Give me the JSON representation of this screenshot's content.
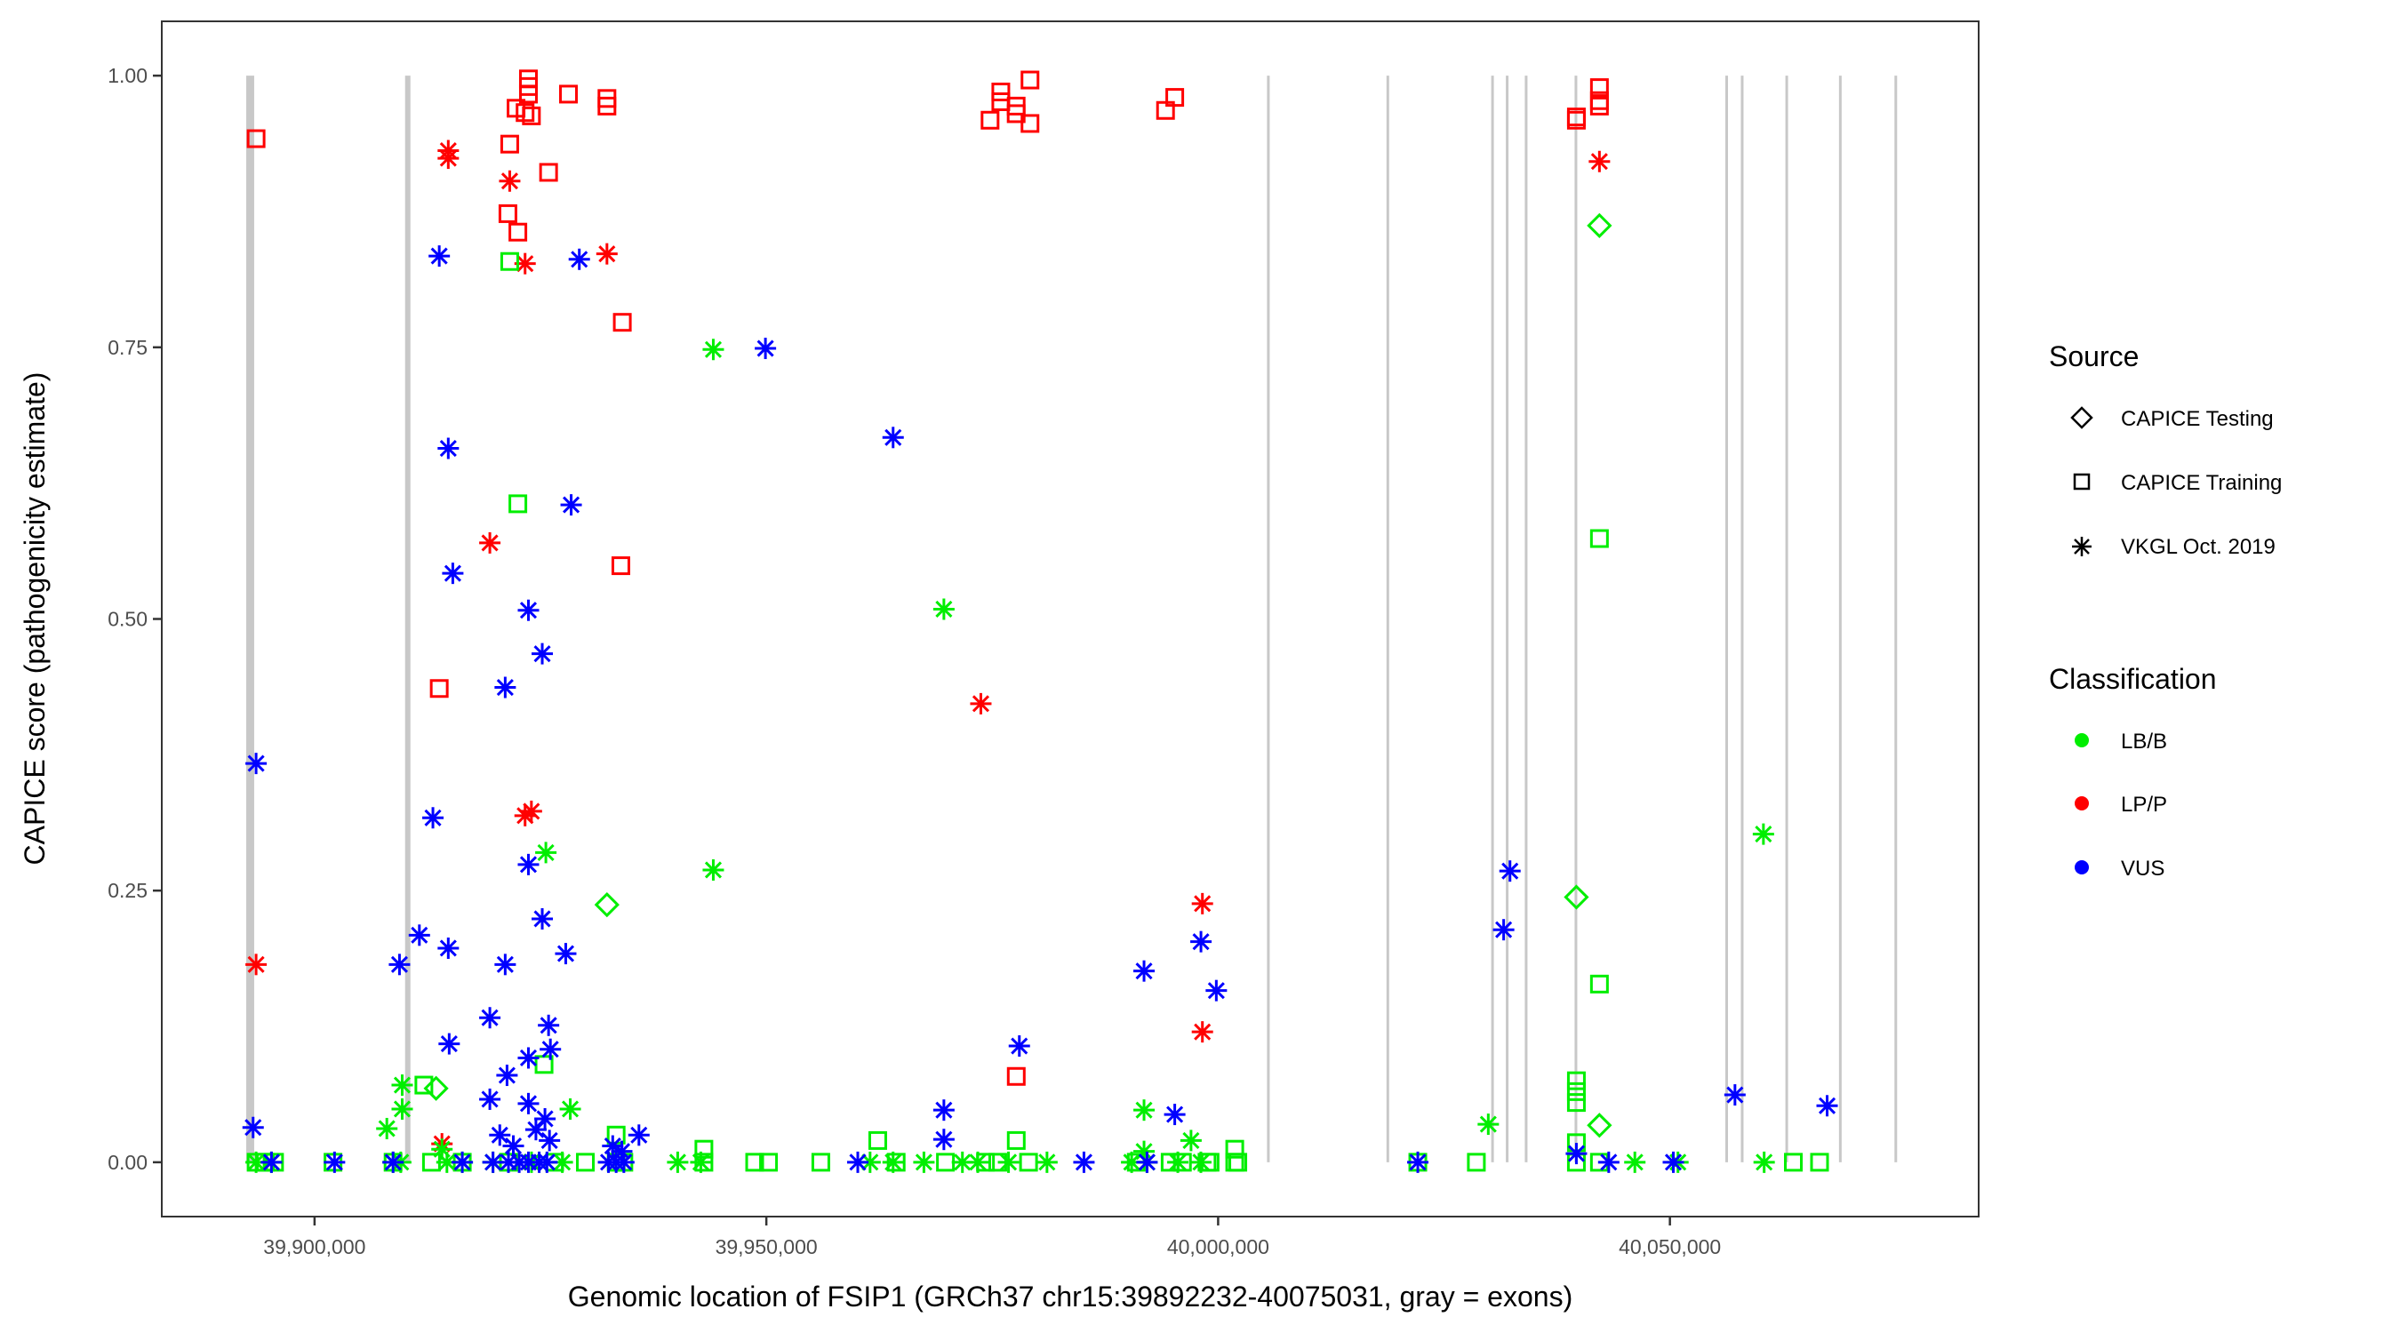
{
  "chart_data": {
    "type": "scatter",
    "xlabel": "Genomic location of FSIP1 (GRCh37 chr15:39892232-40075031, gray = exons)",
    "ylabel": "CAPICE score (pathogenicity estimate)",
    "xlim": [
      39883092,
      40084171
    ],
    "ylim": [
      -0.05,
      1.05
    ],
    "grid": false,
    "x_ticks": [
      {
        "value": 39900000,
        "label": "39,900,000"
      },
      {
        "value": 39950000,
        "label": "39,950,000"
      },
      {
        "value": 40000000,
        "label": "40,000,000"
      },
      {
        "value": 40050000,
        "label": "40,050,000"
      }
    ],
    "y_ticks": [
      {
        "value": 0,
        "label": "0.00"
      },
      {
        "value": 0.25,
        "label": "0.25"
      },
      {
        "value": 0.5,
        "label": "0.50"
      },
      {
        "value": 0.75,
        "label": "0.75"
      },
      {
        "value": 1,
        "label": "1.00"
      }
    ],
    "exons": [
      [
        39892440,
        39893320
      ],
      [
        39910020,
        39910610
      ],
      [
        40005560,
        40005560
      ],
      [
        40018780,
        40018780
      ],
      [
        40030370,
        40030370
      ],
      [
        40031990,
        40031990
      ],
      [
        40034090,
        40034090
      ],
      [
        40039600,
        40039600
      ],
      [
        40056280,
        40056280
      ],
      [
        40058000,
        40058000
      ],
      [
        40062930,
        40062930
      ],
      [
        40068860,
        40068860
      ],
      [
        40075000,
        40075000
      ]
    ],
    "exon_color": "#c8c8c8",
    "legend": {
      "placement": "right",
      "source_title": "Source",
      "sources": [
        {
          "name": "CAPICE Testing",
          "shape": "diamond"
        },
        {
          "name": "CAPICE Training",
          "shape": "square"
        },
        {
          "name": "VKGL Oct. 2019",
          "shape": "asterisk"
        }
      ],
      "class_title": "Classification",
      "classes": [
        {
          "name": "LB/B",
          "color": "#00ee00"
        },
        {
          "name": "LP/P",
          "color": "#ff0000"
        },
        {
          "name": "VUS",
          "color": "#0000ff"
        }
      ]
    },
    "series": [
      {
        "source": "CAPICE Training",
        "classification": "LP/P",
        "points": [
          [
            39893530,
            0.942
          ],
          [
            39923670,
            0.997
          ],
          [
            39923670,
            0.99
          ],
          [
            39923670,
            0.983
          ],
          [
            39922300,
            0.97
          ],
          [
            39923300,
            0.966
          ],
          [
            39924000,
            0.963
          ],
          [
            39928100,
            0.983
          ],
          [
            39932360,
            0.979
          ],
          [
            39932360,
            0.972
          ],
          [
            39921600,
            0.937
          ],
          [
            39925900,
            0.911
          ],
          [
            39921400,
            0.873
          ],
          [
            39922500,
            0.856
          ],
          [
            39934060,
            0.773
          ],
          [
            39933900,
            0.549
          ],
          [
            39913800,
            0.436
          ],
          [
            39977660,
            0.079
          ],
          [
            39974760,
            0.959
          ],
          [
            39975950,
            0.985
          ],
          [
            39975950,
            0.976
          ],
          [
            39977650,
            0.972
          ],
          [
            39977650,
            0.965
          ],
          [
            39979180,
            0.996
          ],
          [
            39979180,
            0.956
          ],
          [
            39994180,
            0.968
          ],
          [
            39995200,
            0.98
          ],
          [
            40039650,
            0.959
          ],
          [
            40039650,
            0.962
          ],
          [
            40042200,
            0.989
          ],
          [
            40042200,
            0.977
          ],
          [
            40042200,
            0.972
          ]
        ]
      },
      {
        "source": "VKGL Oct. 2019",
        "classification": "LP/P",
        "points": [
          [
            39914800,
            0.931
          ],
          [
            39914800,
            0.924
          ],
          [
            39921600,
            0.903
          ],
          [
            39923300,
            0.827
          ],
          [
            39932360,
            0.836
          ],
          [
            39919400,
            0.57
          ],
          [
            39973740,
            0.422
          ],
          [
            39923300,
            0.319
          ],
          [
            39924000,
            0.323
          ],
          [
            39893530,
            0.182
          ],
          [
            39998260,
            0.238
          ],
          [
            39998260,
            0.12
          ],
          [
            40042200,
            0.921
          ],
          [
            39914100,
            0.017
          ]
        ]
      },
      {
        "source": "CAPICE Testing",
        "classification": "LB/B",
        "points": [
          [
            40042200,
            0.862
          ],
          [
            39932360,
            0.237
          ],
          [
            40039650,
            0.244
          ],
          [
            39913450,
            0.068
          ],
          [
            40042200,
            0.034
          ]
        ]
      },
      {
        "source": "CAPICE Training",
        "classification": "LB/B",
        "points": [
          [
            39921600,
            0.829
          ],
          [
            39922500,
            0.606
          ],
          [
            40042200,
            0.574
          ],
          [
            40042200,
            0.164
          ],
          [
            40039650,
            0.075
          ],
          [
            40039650,
            0.065
          ],
          [
            40039650,
            0.055
          ],
          [
            39925400,
            0.09
          ],
          [
            39912100,
            0.071
          ],
          [
            39893530,
            0
          ],
          [
            39894550,
            0
          ],
          [
            39895570,
            0
          ],
          [
            39902040,
            0
          ],
          [
            39908690,
            0
          ],
          [
            39912940,
            0
          ],
          [
            39916350,
            0
          ],
          [
            39921460,
            0
          ],
          [
            39926570,
            0
          ],
          [
            39929970,
            0
          ],
          [
            39933380,
            0
          ],
          [
            39934230,
            0
          ],
          [
            39943090,
            0
          ],
          [
            39948710,
            0
          ],
          [
            39950240,
            0
          ],
          [
            39956030,
            0
          ],
          [
            39962330,
            0.02
          ],
          [
            39964370,
            0
          ],
          [
            39969820,
            0
          ],
          [
            39974250,
            0
          ],
          [
            39975610,
            0
          ],
          [
            39977660,
            0.02
          ],
          [
            39979020,
            0
          ],
          [
            39990940,
            0
          ],
          [
            39994690,
            0
          ],
          [
            39996050,
            0
          ],
          [
            39998770,
            0
          ],
          [
            39999110,
            0
          ],
          [
            40001840,
            0
          ],
          [
            40002180,
            0
          ],
          [
            40022100,
            0
          ],
          [
            40028580,
            0
          ],
          [
            40039650,
            0
          ],
          [
            40042200,
            0
          ],
          [
            40063660,
            0
          ],
          [
            40066560,
            0
          ],
          [
            39943090,
            0.012
          ],
          [
            40001840,
            0.012
          ],
          [
            40039650,
            0.018
          ],
          [
            39933380,
            0.025
          ]
        ]
      },
      {
        "source": "VKGL Oct. 2019",
        "classification": "LB/B",
        "points": [
          [
            39944130,
            0.748
          ],
          [
            39969650,
            0.509
          ],
          [
            39944130,
            0.269
          ],
          [
            39925600,
            0.285
          ],
          [
            40060350,
            0.302
          ],
          [
            39909700,
            0.071
          ],
          [
            39909700,
            0.049
          ],
          [
            39908000,
            0.031
          ],
          [
            39928300,
            0.049
          ],
          [
            39991800,
            0.048
          ],
          [
            40029900,
            0.035
          ],
          [
            39997000,
            0.02
          ],
          [
            39893530,
            0
          ],
          [
            39895230,
            0
          ],
          [
            39908690,
            0
          ],
          [
            39909540,
            0
          ],
          [
            39914650,
            0
          ],
          [
            39916350,
            0
          ],
          [
            39919750,
            0
          ],
          [
            39924010,
            0
          ],
          [
            39927420,
            0
          ],
          [
            39940190,
            0
          ],
          [
            39942750,
            0
          ],
          [
            39961480,
            0
          ],
          [
            39964030,
            0
          ],
          [
            39967440,
            0
          ],
          [
            39971700,
            0
          ],
          [
            39973400,
            0
          ],
          [
            39976800,
            0
          ],
          [
            39981060,
            0
          ],
          [
            39990430,
            0
          ],
          [
            39992130,
            0
          ],
          [
            39995540,
            0
          ],
          [
            39998090,
            0
          ],
          [
            40046120,
            0
          ],
          [
            40050890,
            0
          ],
          [
            40060430,
            0
          ],
          [
            39914100,
            0.012
          ],
          [
            39991800,
            0.01
          ]
        ]
      },
      {
        "source": "VKGL Oct. 2019",
        "classification": "VUS",
        "points": [
          [
            39893530,
            0.367
          ],
          [
            39893200,
            0.032
          ],
          [
            39913800,
            0.834
          ],
          [
            39929300,
            0.831
          ],
          [
            39949900,
            0.749
          ],
          [
            39964030,
            0.667
          ],
          [
            39914800,
            0.657
          ],
          [
            39928400,
            0.605
          ],
          [
            39915300,
            0.542
          ],
          [
            39923670,
            0.508
          ],
          [
            39925200,
            0.468
          ],
          [
            39921100,
            0.437
          ],
          [
            39913100,
            0.317
          ],
          [
            39923670,
            0.274
          ],
          [
            39925200,
            0.224
          ],
          [
            39927800,
            0.192
          ],
          [
            39921100,
            0.182
          ],
          [
            39909400,
            0.182
          ],
          [
            39911600,
            0.209
          ],
          [
            39914800,
            0.197
          ],
          [
            39919400,
            0.133
          ],
          [
            39914900,
            0.109
          ],
          [
            39921300,
            0.08
          ],
          [
            39925900,
            0.126
          ],
          [
            39926100,
            0.104
          ],
          [
            39923670,
            0.096
          ],
          [
            39919400,
            0.058
          ],
          [
            39923670,
            0.054
          ],
          [
            39978000,
            0.107
          ],
          [
            39969650,
            0.048
          ],
          [
            39969650,
            0.021
          ],
          [
            39991800,
            0.176
          ],
          [
            39998100,
            0.203
          ],
          [
            39999800,
            0.158
          ],
          [
            39995200,
            0.044
          ],
          [
            40032300,
            0.268
          ],
          [
            40031600,
            0.214
          ],
          [
            40057200,
            0.062
          ],
          [
            40067400,
            0.052
          ],
          [
            39935900,
            0.025
          ],
          [
            39920500,
            0.025
          ],
          [
            39922000,
            0.015
          ],
          [
            39924500,
            0.03
          ],
          [
            39925500,
            0.04
          ],
          [
            39926000,
            0.02
          ],
          [
            39933000,
            0.015
          ],
          [
            39934000,
            0.01
          ],
          [
            39895230,
            0
          ],
          [
            39902210,
            0
          ],
          [
            39908690,
            0
          ],
          [
            39916350,
            0
          ],
          [
            39919750,
            0
          ],
          [
            39921460,
            0
          ],
          [
            39922650,
            0
          ],
          [
            39923670,
            0
          ],
          [
            39924860,
            0
          ],
          [
            39925720,
            0
          ],
          [
            39932530,
            0
          ],
          [
            39933380,
            0
          ],
          [
            39934230,
            0
          ],
          [
            39960120,
            0
          ],
          [
            39985150,
            0
          ],
          [
            39992130,
            0
          ],
          [
            40022100,
            0
          ],
          [
            40039650,
            0.008
          ],
          [
            40043230,
            0
          ],
          [
            40050380,
            0
          ]
        ]
      }
    ]
  }
}
